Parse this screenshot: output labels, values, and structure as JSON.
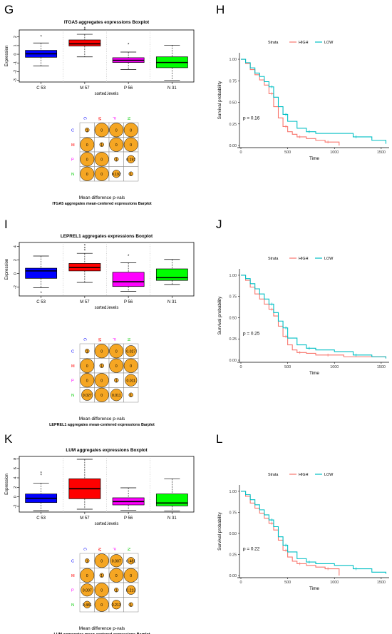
{
  "panels": {
    "G": "G",
    "H": "H",
    "I": "I",
    "J": "J",
    "K": "K",
    "L": "L"
  },
  "chart_data": [
    {
      "type": "boxplot",
      "panel": "G",
      "title": "ITGA5 aggregates expressions Boxplot",
      "xlabel": "sorted.levels",
      "ylabel": "Expression",
      "yticks": [
        -3,
        -2,
        -1,
        0,
        1,
        2
      ],
      "ylim": [
        -3.2,
        2.8
      ],
      "categories": [
        "C 53",
        "M 57",
        "P 56",
        "N 31"
      ],
      "colors": [
        "#0000ff",
        "#ff0000",
        "#ff00ff",
        "#00ff00"
      ],
      "boxes": [
        {
          "q1": -0.35,
          "median": 0.05,
          "q3": 0.45,
          "wlo": -1.35,
          "whi": 1.3,
          "outliers": [
            2.0
          ]
        },
        {
          "q1": 0.95,
          "median": 1.2,
          "q3": 1.65,
          "wlo": -0.3,
          "whi": 2.3,
          "outliers": [
            2.95,
            2.75
          ]
        },
        {
          "q1": -0.95,
          "median": -0.7,
          "q3": -0.4,
          "wlo": -1.75,
          "whi": 0.25,
          "outliers": [
            1.1
          ]
        },
        {
          "q1": -1.55,
          "median": -0.95,
          "q3": -0.3,
          "wlo": -3.0,
          "whi": 1.05,
          "outliers": []
        }
      ]
    },
    {
      "type": "km",
      "panel": "H",
      "legend_title": "Strata",
      "legend": [
        "HIGH",
        "LOW"
      ],
      "colors": [
        "#f8766d",
        "#00bfc4"
      ],
      "xlabel": "Time",
      "ylabel": "Survival probability",
      "xticks": [
        0,
        500,
        1000,
        1500
      ],
      "yticks": [
        0.0,
        0.25,
        0.5,
        0.75,
        1.0
      ],
      "pvalue": "p = 0.16",
      "series": [
        {
          "name": "HIGH",
          "x": [
            0,
            50,
            100,
            150,
            200,
            250,
            300,
            350,
            400,
            450,
            500,
            550,
            600,
            700,
            800,
            900,
            1050
          ],
          "y": [
            1.0,
            0.95,
            0.88,
            0.82,
            0.76,
            0.7,
            0.6,
            0.45,
            0.32,
            0.22,
            0.16,
            0.13,
            0.1,
            0.08,
            0.06,
            0.04,
            0.0
          ]
        },
        {
          "name": "LOW",
          "x": [
            0,
            50,
            100,
            150,
            200,
            250,
            300,
            350,
            400,
            450,
            500,
            600,
            700,
            800,
            1000,
            1200,
            1400,
            1550
          ],
          "y": [
            1.0,
            0.96,
            0.9,
            0.84,
            0.8,
            0.74,
            0.68,
            0.56,
            0.45,
            0.36,
            0.28,
            0.2,
            0.16,
            0.14,
            0.14,
            0.1,
            0.06,
            0.02
          ]
        }
      ]
    },
    {
      "type": "boxplot",
      "panel": "I",
      "title": "LEPREL1 aggregates expressions Boxplot",
      "xlabel": "sorted.levels",
      "ylabel": "Expression",
      "yticks": [
        -2,
        0,
        2,
        4
      ],
      "ylim": [
        -3.3,
        4.6
      ],
      "categories": [
        "C 53",
        "M 57",
        "P 56",
        "N 31"
      ],
      "colors": [
        "#0000ff",
        "#ff0000",
        "#ff00ff",
        "#00ff00"
      ],
      "boxes": [
        {
          "q1": -0.7,
          "median": 0.4,
          "q3": 0.8,
          "wlo": -2.1,
          "whi": 2.6,
          "outliers": [
            -2.9
          ]
        },
        {
          "q1": 0.4,
          "median": 0.9,
          "q3": 1.5,
          "wlo": -1.3,
          "whi": 3.0,
          "outliers": [
            4.1,
            3.4,
            3.7
          ]
        },
        {
          "q1": -1.9,
          "median": -1.2,
          "q3": 0.2,
          "wlo": -2.6,
          "whi": 1.6,
          "outliers": [
            2.6
          ]
        },
        {
          "q1": -1.0,
          "median": -0.6,
          "q3": 0.7,
          "wlo": -1.6,
          "whi": 2.1,
          "outliers": []
        }
      ]
    },
    {
      "type": "km",
      "panel": "J",
      "legend_title": "Strata",
      "legend": [
        "HIGH",
        "LOW"
      ],
      "colors": [
        "#f8766d",
        "#00bfc4"
      ],
      "xlabel": "Time",
      "ylabel": "Survival probability",
      "xticks": [
        0,
        500,
        1000,
        1500
      ],
      "yticks": [
        0.0,
        0.25,
        0.5,
        0.75,
        1.0
      ],
      "pvalue": "p = 0.25",
      "series": [
        {
          "name": "HIGH",
          "x": [
            0,
            50,
            100,
            150,
            200,
            250,
            300,
            350,
            400,
            450,
            500,
            550,
            600,
            700,
            800,
            900,
            1100,
            1550
          ],
          "y": [
            1.0,
            0.94,
            0.86,
            0.78,
            0.72,
            0.66,
            0.6,
            0.52,
            0.4,
            0.28,
            0.18,
            0.12,
            0.09,
            0.08,
            0.06,
            0.06,
            0.04,
            0.02
          ]
        },
        {
          "name": "LOW",
          "x": [
            0,
            50,
            100,
            150,
            200,
            250,
            300,
            350,
            400,
            450,
            500,
            600,
            700,
            800,
            1000,
            1200,
            1400,
            1550
          ],
          "y": [
            1.0,
            0.96,
            0.9,
            0.84,
            0.78,
            0.72,
            0.66,
            0.56,
            0.46,
            0.38,
            0.26,
            0.18,
            0.14,
            0.12,
            0.1,
            0.06,
            0.04,
            0.02
          ]
        }
      ]
    },
    {
      "type": "boxplot",
      "panel": "K",
      "title": "LUM aggregates expressions Boxplot",
      "xlabel": "sorted.levels",
      "ylabel": "Expression",
      "yticks": [
        -2,
        0,
        2,
        4,
        6,
        8
      ],
      "ylim": [
        -3.2,
        8.5
      ],
      "categories": [
        "C 53",
        "M 57",
        "P 56",
        "N 31"
      ],
      "colors": [
        "#0000ff",
        "#ff0000",
        "#ff00ff",
        "#00ff00"
      ],
      "boxes": [
        {
          "q1": -1.2,
          "median": -0.3,
          "q3": 0.6,
          "wlo": -2.9,
          "whi": 2.9,
          "outliers": [
            5.0,
            4.5
          ]
        },
        {
          "q1": -0.4,
          "median": 1.7,
          "q3": 3.8,
          "wlo": -2.6,
          "whi": 7.9,
          "outliers": []
        },
        {
          "q1": -1.7,
          "median": -1.0,
          "q3": -0.2,
          "wlo": -2.8,
          "whi": 1.9,
          "outliers": []
        },
        {
          "q1": -1.9,
          "median": -1.3,
          "q3": 0.6,
          "wlo": -3.0,
          "whi": 3.8,
          "outliers": []
        }
      ]
    },
    {
      "type": "km",
      "panel": "L",
      "legend_title": "Strata",
      "legend": [
        "HIGH",
        "LOW"
      ],
      "colors": [
        "#f8766d",
        "#00bfc4"
      ],
      "xlabel": "Time",
      "ylabel": "Survival probability",
      "xticks": [
        0,
        500,
        1000,
        1500
      ],
      "yticks": [
        0.0,
        0.25,
        0.5,
        0.75,
        1.0
      ],
      "pvalue": "p = 0.22",
      "series": [
        {
          "name": "HIGH",
          "x": [
            0,
            50,
            100,
            150,
            200,
            250,
            300,
            350,
            400,
            450,
            500,
            550,
            600,
            700,
            800,
            900,
            1050
          ],
          "y": [
            1.0,
            0.94,
            0.86,
            0.8,
            0.74,
            0.68,
            0.62,
            0.54,
            0.42,
            0.3,
            0.22,
            0.17,
            0.14,
            0.12,
            0.1,
            0.08,
            0.0
          ]
        },
        {
          "name": "LOW",
          "x": [
            0,
            50,
            100,
            150,
            200,
            250,
            300,
            350,
            400,
            450,
            500,
            600,
            700,
            800,
            1000,
            1200,
            1400,
            1550
          ],
          "y": [
            1.0,
            0.96,
            0.9,
            0.84,
            0.78,
            0.72,
            0.66,
            0.58,
            0.46,
            0.36,
            0.28,
            0.2,
            0.16,
            0.14,
            0.12,
            0.08,
            0.04,
            0.02
          ]
        }
      ]
    },
    {
      "type": "heatmap",
      "panel": "G",
      "labels": [
        "C",
        "M",
        "P",
        "N"
      ],
      "label_colors": [
        "#0000ff",
        "#ff0000",
        "#ff00ff",
        "#00cc00"
      ],
      "cells": [
        [
          "1",
          "0",
          "0",
          "0"
        ],
        [
          "0",
          "1",
          "0",
          "0"
        ],
        [
          "0",
          "0",
          "1",
          "0.192"
        ],
        [
          "0",
          "0",
          "0.192",
          "1"
        ]
      ],
      "sizes": [
        [
          0.3,
          1,
          1,
          1
        ],
        [
          1,
          0.3,
          1,
          1
        ],
        [
          1,
          1,
          0.3,
          0.55
        ],
        [
          1,
          1,
          0.55,
          0.3
        ]
      ],
      "title": "Mean difference p-vals",
      "subtitle": "ITGA5 aggregates mean-centered expressions Barplot"
    },
    {
      "type": "heatmap",
      "panel": "I",
      "labels": [
        "C",
        "M",
        "P",
        "N"
      ],
      "label_colors": [
        "#0000ff",
        "#ff0000",
        "#ff00ff",
        "#00cc00"
      ],
      "cells": [
        [
          "1",
          "0",
          "0",
          "0.027"
        ],
        [
          "0",
          "1",
          "0",
          "0"
        ],
        [
          "0",
          "0",
          "1",
          "0.011"
        ],
        [
          "0.027",
          "0",
          "0.011",
          "1"
        ]
      ],
      "sizes": [
        [
          0.3,
          1,
          1,
          0.8
        ],
        [
          1,
          0.3,
          1,
          1
        ],
        [
          1,
          1,
          0.3,
          0.85
        ],
        [
          0.8,
          1,
          0.85,
          0.3
        ]
      ],
      "title": "Mean difference p-vals",
      "subtitle": "LEPREL1 aggregates mean-centered expressions Barplot"
    },
    {
      "type": "heatmap",
      "panel": "K",
      "labels": [
        "C",
        "M",
        "P",
        "N"
      ],
      "label_colors": [
        "#0000ff",
        "#ff0000",
        "#ff00ff",
        "#00cc00"
      ],
      "cells": [
        [
          "1",
          "0",
          "0.007",
          "0.481"
        ],
        [
          "0",
          "1",
          "0",
          "0"
        ],
        [
          "0.007",
          "0",
          "1",
          "0.213"
        ],
        [
          "0.481",
          "0",
          "0.213",
          "1"
        ]
      ],
      "sizes": [
        [
          0.3,
          1,
          0.9,
          0.5
        ],
        [
          1,
          0.3,
          1,
          1
        ],
        [
          0.9,
          1,
          0.3,
          0.65
        ],
        [
          0.5,
          1,
          0.65,
          0.3
        ]
      ],
      "title": "Mean difference p-vals",
      "subtitle": "LUM aggregates mean-centered expressions Barplot"
    }
  ]
}
